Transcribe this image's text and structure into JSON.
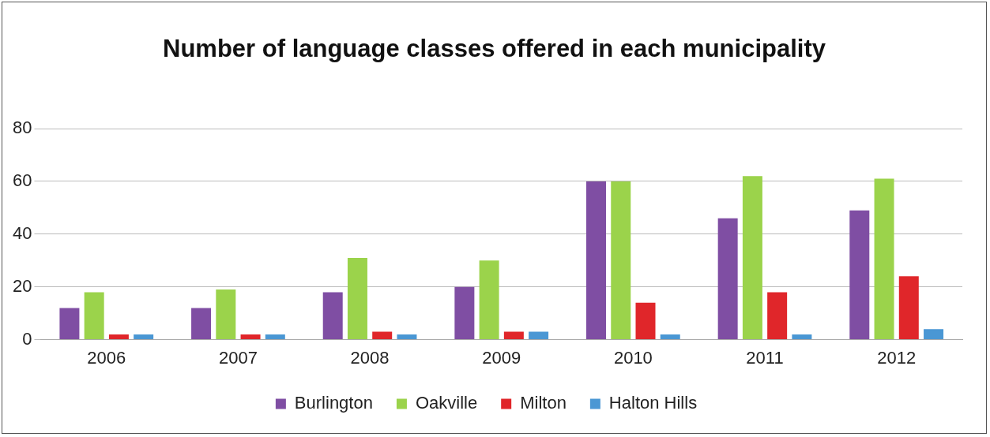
{
  "chart_data": {
    "type": "bar",
    "title": "Number of language classes offered in each municipality",
    "categories": [
      "2006",
      "2007",
      "2008",
      "2009",
      "2010",
      "2011",
      "2012"
    ],
    "series": [
      {
        "name": "Burlington",
        "color": "#7f4ea3",
        "values": [
          12,
          12,
          18,
          20,
          60,
          46,
          49
        ]
      },
      {
        "name": "Oakville",
        "color": "#9bd34b",
        "values": [
          18,
          19,
          31,
          30,
          60,
          62,
          61
        ]
      },
      {
        "name": "Milton",
        "color": "#e0262a",
        "values": [
          2,
          2,
          3,
          3,
          14,
          18,
          24
        ]
      },
      {
        "name": "Halton Hills",
        "color": "#4a97d4",
        "values": [
          2,
          2,
          2,
          3,
          2,
          2,
          4
        ]
      }
    ],
    "ylim": [
      0,
      80
    ],
    "yticks": [
      0,
      20,
      40,
      60,
      80
    ],
    "grid": "y",
    "legend": "bottom"
  }
}
